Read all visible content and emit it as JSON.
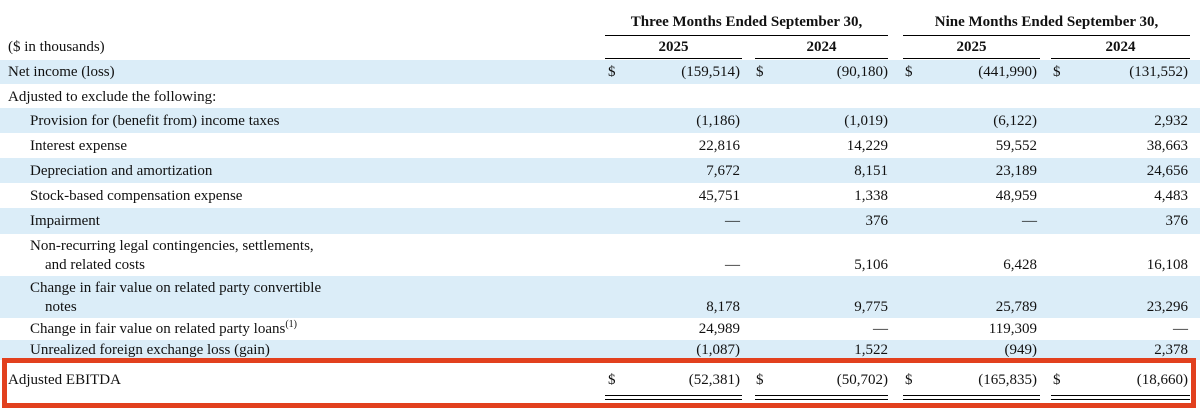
{
  "header": {
    "units": "($ in thousands)",
    "periods": [
      {
        "title": "Three Months Ended September 30,",
        "years": [
          "2025",
          "2024"
        ]
      },
      {
        "title": "Nine Months Ended September 30,",
        "years": [
          "2025",
          "2024"
        ]
      }
    ]
  },
  "table": {
    "net_income": {
      "label": "Net income (loss)",
      "currency": "$",
      "values": [
        "(159,514)",
        "(90,180)",
        "(441,990)",
        "(131,552)"
      ]
    },
    "adjustments": {
      "label": "Adjusted to exclude the following:",
      "items": [
        {
          "label": "Provision for (benefit from) income taxes",
          "values": [
            "(1,186)",
            "(1,019)",
            "(6,122)",
            "2,932"
          ]
        },
        {
          "label": "Interest expense",
          "values": [
            "22,816",
            "14,229",
            "59,552",
            "38,663"
          ]
        },
        {
          "label": "Depreciation and amortization",
          "values": [
            "7,672",
            "8,151",
            "23,189",
            "24,656"
          ]
        },
        {
          "label": "Stock-based compensation expense",
          "values": [
            "45,751",
            "1,338",
            "48,959",
            "4,483"
          ]
        },
        {
          "label": "Impairment",
          "values": [
            "—",
            "376",
            "—",
            "376"
          ]
        },
        {
          "label": "Non-recurring legal contingencies, settlements,",
          "label_continued": "and related costs",
          "values": [
            "—",
            "5,106",
            "6,428",
            "16,108"
          ]
        },
        {
          "label": "Change in fair value on related party convertible",
          "label_continued": "notes",
          "values": [
            "8,178",
            "9,775",
            "25,789",
            "23,296"
          ]
        },
        {
          "label": "Change in fair value on related party loans",
          "footnote": "(1)",
          "values": [
            "24,989",
            "—",
            "119,309",
            "—"
          ]
        },
        {
          "label": "Unrealized foreign exchange loss (gain)",
          "values": [
            "(1,087)",
            "1,522",
            "(949)",
            "2,378"
          ]
        }
      ]
    },
    "total": {
      "label": "Adjusted EBITDA",
      "currency": "$",
      "values": [
        "(52,381)",
        "(50,702)",
        "(165,835)",
        "(18,660)"
      ]
    }
  }
}
